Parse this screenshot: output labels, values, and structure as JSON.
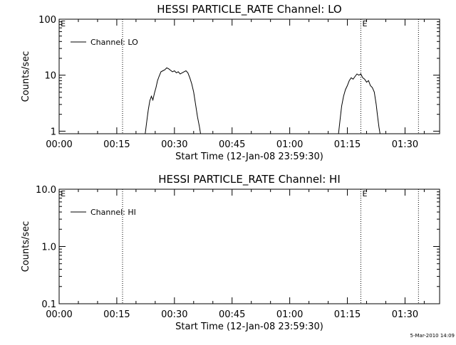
{
  "footer": {
    "timestamp": "5-Mar-2010 14:09"
  },
  "chart_data": [
    {
      "type": "line",
      "title": "HESSI PARTICLE_RATE Channel: LO",
      "xlabel": "Start Time (12-Jan-08 23:59:30)",
      "ylabel": "Counts/sec",
      "yscale": "log",
      "xlim_minutes": [
        0,
        99
      ],
      "ylim": [
        0.9,
        100
      ],
      "xtick_labels": [
        "00:00",
        "00:15",
        "00:30",
        "00:45",
        "01:00",
        "01:15",
        "01:30"
      ],
      "xtick_minutes": [
        0,
        15,
        30,
        45,
        60,
        75,
        90
      ],
      "ytick_labels": [
        "1",
        "10",
        "100"
      ],
      "ytick_values": [
        1,
        10,
        100
      ],
      "grid": false,
      "legend": {
        "placement": "top-left",
        "entries": [
          "Channel: LO"
        ]
      },
      "vlines_minutes": [
        16.5,
        78.5,
        93.5
      ],
      "annotations": [
        {
          "text": "E",
          "x_minutes": 0.2
        },
        {
          "text": "E",
          "x_minutes": 78.7
        }
      ],
      "series": [
        {
          "name": "Channel: LO",
          "segments": [
            [
              [
                22.4,
                0.9
              ],
              [
                22.8,
                1.5
              ],
              [
                23.2,
                2.4
              ],
              [
                23.6,
                3.5
              ],
              [
                24.0,
                4.2
              ],
              [
                24.4,
                3.6
              ],
              [
                24.8,
                4.8
              ],
              [
                25.2,
                6.0
              ],
              [
                25.6,
                8.0
              ],
              [
                26.0,
                9.5
              ],
              [
                26.5,
                11.5
              ],
              [
                27.0,
                12.0
              ],
              [
                27.5,
                12.5
              ],
              [
                28.0,
                13.5
              ],
              [
                28.5,
                13.0
              ],
              [
                29.0,
                12.2
              ],
              [
                29.5,
                11.5
              ],
              [
                30.0,
                12.0
              ],
              [
                30.5,
                11.0
              ],
              [
                31.0,
                11.5
              ],
              [
                31.5,
                10.5
              ],
              [
                32.0,
                11.0
              ],
              [
                32.5,
                11.5
              ],
              [
                33.0,
                12.0
              ],
              [
                33.5,
                11.0
              ],
              [
                34.0,
                9.0
              ],
              [
                34.5,
                7.0
              ],
              [
                35.0,
                5.0
              ],
              [
                35.5,
                3.0
              ],
              [
                36.0,
                1.8
              ],
              [
                36.5,
                1.2
              ],
              [
                36.8,
                0.9
              ]
            ],
            [
              [
                72.7,
                0.9
              ],
              [
                73.1,
                1.6
              ],
              [
                73.5,
                2.8
              ],
              [
                74.0,
                4.2
              ],
              [
                74.5,
                5.5
              ],
              [
                75.0,
                6.5
              ],
              [
                75.5,
                8.0
              ],
              [
                76.0,
                9.0
              ],
              [
                76.5,
                8.5
              ],
              [
                77.0,
                9.5
              ],
              [
                77.5,
                10.5
              ],
              [
                78.0,
                10.0
              ],
              [
                78.5,
                10.5
              ],
              [
                79.0,
                9.0
              ],
              [
                79.5,
                8.5
              ],
              [
                80.0,
                7.5
              ],
              [
                80.5,
                8.0
              ],
              [
                81.0,
                6.5
              ],
              [
                81.5,
                6.0
              ],
              [
                82.0,
                5.0
              ],
              [
                82.5,
                3.0
              ],
              [
                82.8,
                2.0
              ],
              [
                83.2,
                1.2
              ],
              [
                83.5,
                0.9
              ]
            ]
          ]
        }
      ]
    },
    {
      "type": "line",
      "title": "HESSI PARTICLE_RATE Channel: HI",
      "xlabel": "Start Time (12-Jan-08 23:59:30)",
      "ylabel": "Counts/sec",
      "yscale": "log",
      "xlim_minutes": [
        0,
        99
      ],
      "ylim": [
        0.1,
        10
      ],
      "xtick_labels": [
        "00:00",
        "00:15",
        "00:30",
        "00:45",
        "01:00",
        "01:15",
        "01:30"
      ],
      "xtick_minutes": [
        0,
        15,
        30,
        45,
        60,
        75,
        90
      ],
      "ytick_labels": [
        "0.1",
        "1.0",
        "10.0"
      ],
      "ytick_values": [
        0.1,
        1,
        10
      ],
      "grid": false,
      "legend": {
        "placement": "top-left",
        "entries": [
          "Channel: HI"
        ]
      },
      "vlines_minutes": [
        16.5,
        78.5,
        93.5
      ],
      "annotations": [
        {
          "text": "E",
          "x_minutes": 0.2
        },
        {
          "text": "E",
          "x_minutes": 78.7
        }
      ],
      "series": [
        {
          "name": "Channel: HI",
          "segments": []
        }
      ]
    }
  ]
}
